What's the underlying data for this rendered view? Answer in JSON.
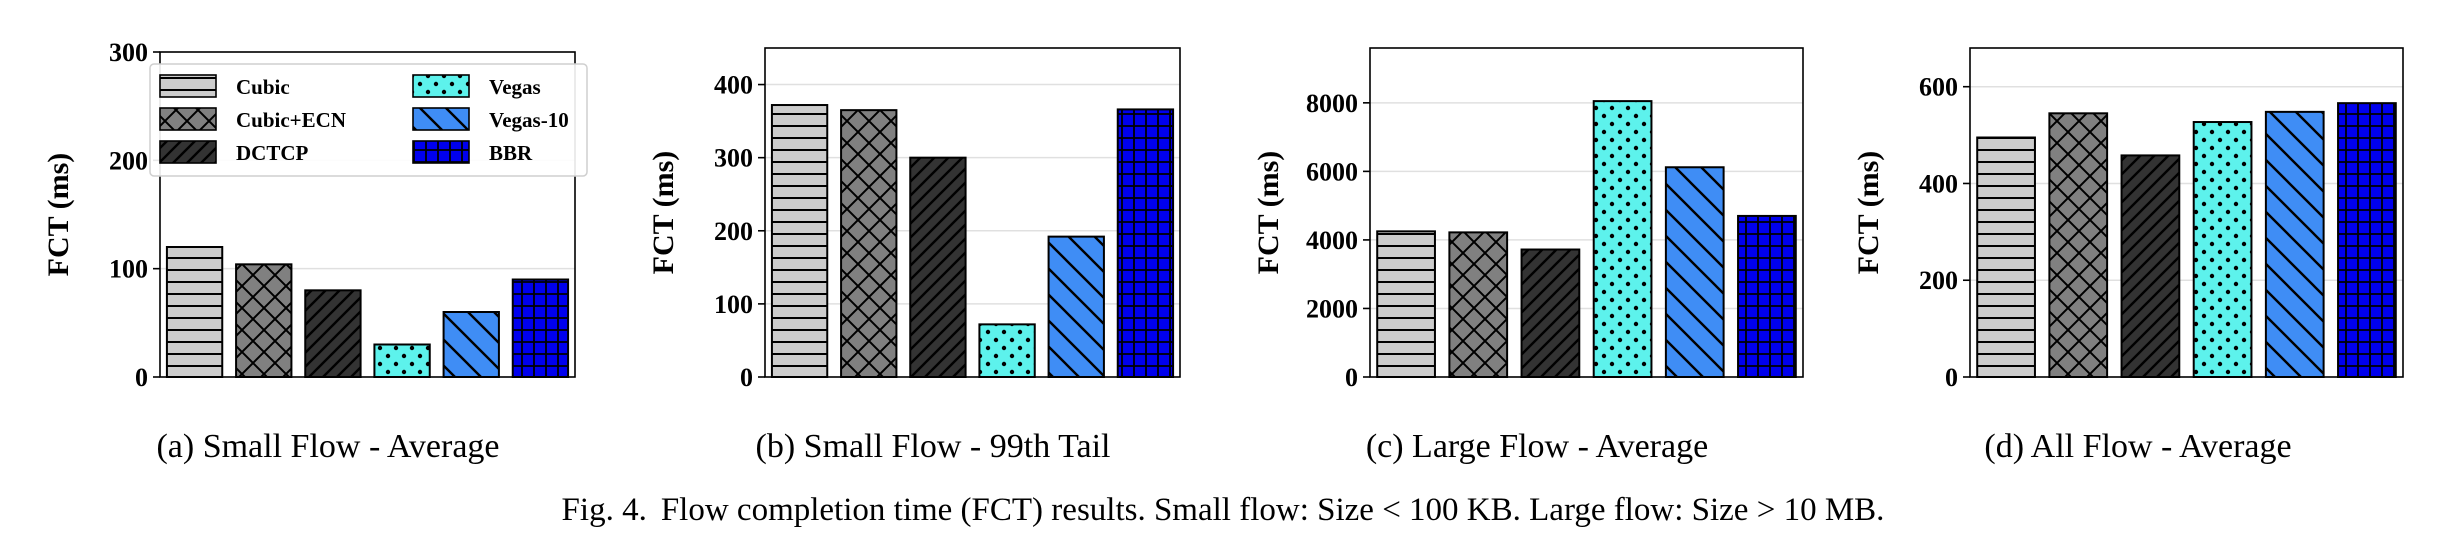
{
  "figure": {
    "label": "Fig. 4.",
    "caption": "Flow completion time (FCT) results. Small flow: Size < 100 KB. Large flow: Size > 10 MB."
  },
  "legend": [
    "Cubic",
    "Cubic+ECN",
    "DCTCP",
    "Vegas",
    "Vegas-10",
    "BBR"
  ],
  "series_styles": {
    "Cubic": {
      "color": "#cccccc",
      "pattern": "horizontal-lines"
    },
    "Cubic+ECN": {
      "color": "#808080",
      "pattern": "crosshatch"
    },
    "DCTCP": {
      "color": "#333333",
      "pattern": "diagonal-lines"
    },
    "Vegas": {
      "color": "#5df2ec",
      "pattern": "dots"
    },
    "Vegas-10": {
      "color": "#3f8df5",
      "pattern": "back-diagonal-lines"
    },
    "BBR": {
      "color": "#0000ee",
      "pattern": "grid"
    }
  },
  "chart_data": [
    {
      "type": "bar",
      "subcaption": "(a) Small Flow - Average",
      "ylabel": "FCT (ms)",
      "categories": [
        "Cubic",
        "Cubic+ECN",
        "DCTCP",
        "Vegas",
        "Vegas-10",
        "BBR"
      ],
      "values": [
        120,
        104,
        80,
        30,
        60,
        90
      ],
      "ylim": [
        0,
        300
      ],
      "yticks": [
        0,
        100,
        200,
        300
      ],
      "grid": true,
      "legend": "top-left"
    },
    {
      "type": "bar",
      "subcaption": "(b) Small Flow - 99th Tail",
      "ylabel": "FCT (ms)",
      "categories": [
        "Cubic",
        "Cubic+ECN",
        "DCTCP",
        "Vegas",
        "Vegas-10",
        "BBR"
      ],
      "values": [
        372,
        365,
        300,
        72,
        192,
        366
      ],
      "ylim": [
        0,
        450
      ],
      "yticks": [
        0,
        100,
        200,
        300,
        400
      ],
      "grid": true
    },
    {
      "type": "bar",
      "subcaption": "(c) Large Flow - Average",
      "ylabel": "FCT (ms)",
      "categories": [
        "Cubic",
        "Cubic+ECN",
        "DCTCP",
        "Vegas",
        "Vegas-10",
        "BBR"
      ],
      "values": [
        4250,
        4220,
        3720,
        8050,
        6120,
        4700
      ],
      "ylim": [
        0,
        9600
      ],
      "yticks": [
        0,
        2000,
        4000,
        6000,
        8000
      ],
      "grid": true
    },
    {
      "type": "bar",
      "subcaption": "(d) All Flow - Average",
      "ylabel": "FCT (ms)",
      "categories": [
        "Cubic",
        "Cubic+ECN",
        "DCTCP",
        "Vegas",
        "Vegas-10",
        "BBR"
      ],
      "values": [
        495,
        545,
        458,
        527,
        548,
        566
      ],
      "ylim": [
        0,
        680
      ],
      "yticks": [
        0,
        200,
        400,
        600
      ],
      "grid": true
    }
  ]
}
